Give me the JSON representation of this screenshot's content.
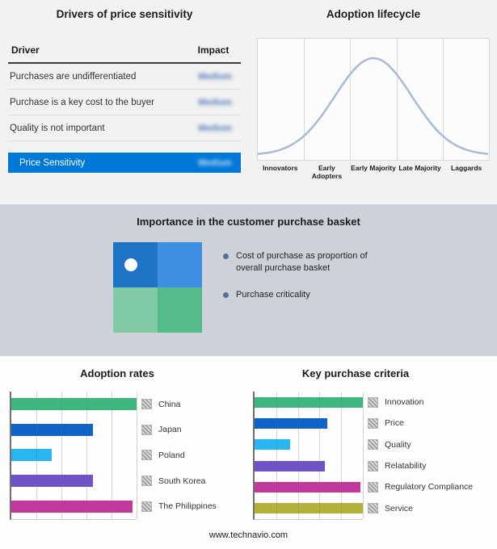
{
  "drivers": {
    "title": "Drivers of price sensitivity",
    "columns": {
      "driver": "Driver",
      "impact": "Impact"
    },
    "rows": [
      {
        "driver": "Purchases are undifferentiated",
        "impact": "Medium"
      },
      {
        "driver": "Purchase is a key cost to the buyer",
        "impact": "Medium"
      },
      {
        "driver": "Quality is not important",
        "impact": "Medium"
      }
    ],
    "highlight": {
      "label": "Price Sensitivity",
      "impact": "Medium",
      "color": "#0078d7"
    }
  },
  "basket": {
    "title": "Importance in the customer purchase basket",
    "bullets": [
      "Cost of purchase as proportion of overall purchase basket",
      "Purchase criticality"
    ],
    "quadrant_colors": [
      "#1e73c6",
      "#3c8fe3",
      "#7fcaa4",
      "#55bb8b"
    ],
    "bullet_color": "#51719b"
  },
  "chart_data": [
    {
      "id": "adoption-lifecycle",
      "type": "line",
      "shape": "bell-curve",
      "title": "Adoption lifecycle",
      "categories": [
        "Innovators",
        "Early Adopters",
        "Early Majority",
        "Late Majority",
        "Laggards"
      ],
      "line_color": "#a6bcd6",
      "grid": true
    },
    {
      "id": "adoption-rates",
      "type": "bar",
      "orientation": "horizontal",
      "title": "Adoption rates",
      "categories": [
        "China",
        "Japan",
        "Poland",
        "South Korea",
        "The Philippines"
      ],
      "values": [
        100,
        65,
        32,
        65,
        97
      ],
      "colors": [
        "#3eb77f",
        "#0e63c8",
        "#29b5ef",
        "#6f52c5",
        "#c2399e"
      ],
      "xlim": [
        0,
        100
      ],
      "gridline_intervals": 5,
      "legend_position": "right"
    },
    {
      "id": "key-purchase-criteria",
      "type": "bar",
      "orientation": "horizontal",
      "title": "Key purchase criteria",
      "categories": [
        "Innovation",
        "Price",
        "Quality",
        "Relatability",
        "Regulatory Compliance",
        "Service"
      ],
      "values": [
        100,
        67,
        33,
        65,
        98,
        100
      ],
      "colors": [
        "#3eb77f",
        "#0e63c8",
        "#29b5ef",
        "#6f52c5",
        "#c2399e",
        "#b4b13b"
      ],
      "xlim": [
        0,
        100
      ],
      "gridline_intervals": 5,
      "legend_position": "right"
    }
  ],
  "footer": {
    "url": "www.technavio.com"
  }
}
